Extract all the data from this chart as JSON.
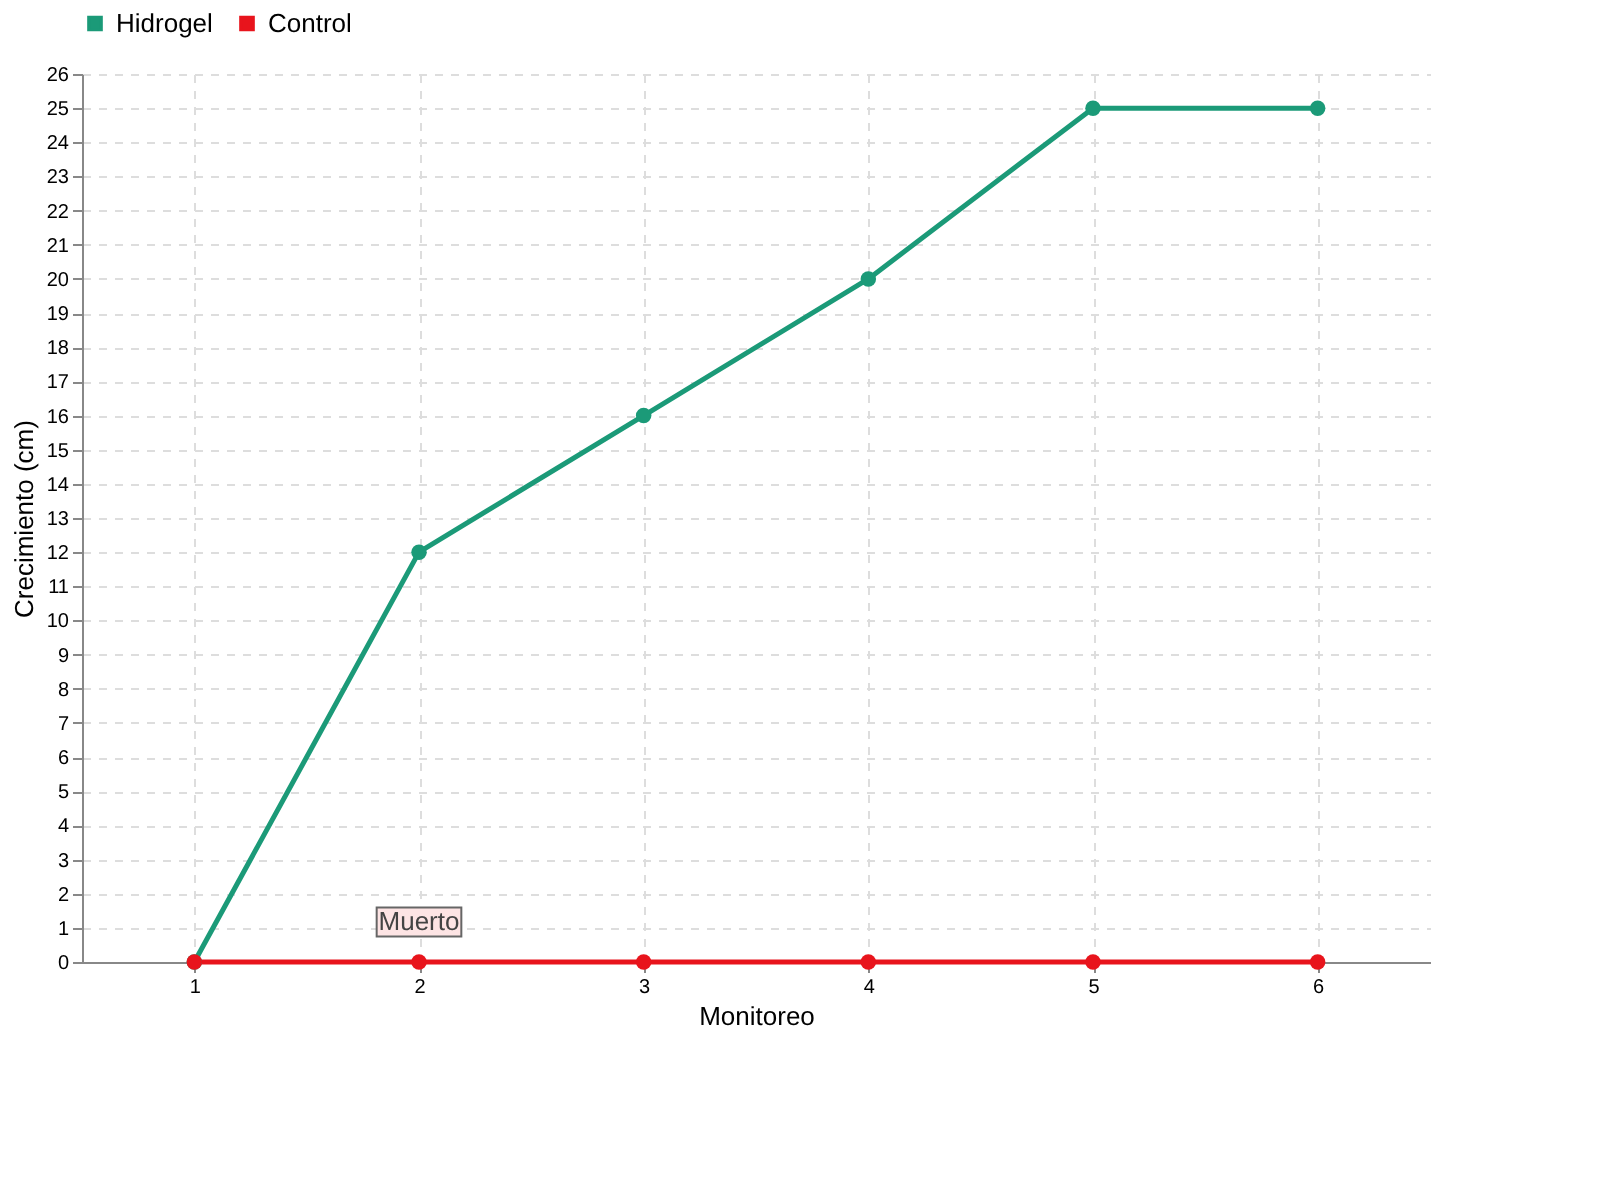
{
  "chart_data": {
    "type": "line",
    "xlabel": "Monitoreo",
    "ylabel": "Crecimiento (cm)",
    "x": [
      1,
      2,
      3,
      4,
      5,
      6
    ],
    "series": [
      {
        "name": "Hidrogel",
        "color": "#1b9a78",
        "values": [
          0,
          12,
          16,
          20,
          25,
          25
        ]
      },
      {
        "name": "Control",
        "color": "#e8141c",
        "values": [
          0,
          0,
          0,
          0,
          0,
          0
        ]
      }
    ],
    "xlim": [
      0.5,
      6.5
    ],
    "xticks": [
      1,
      2,
      3,
      4,
      5,
      6
    ],
    "ylim": [
      0,
      26
    ],
    "yticks": [
      0,
      1,
      2,
      3,
      4,
      5,
      6,
      7,
      8,
      9,
      10,
      11,
      12,
      13,
      14,
      15,
      16,
      17,
      18,
      19,
      20,
      21,
      22,
      23,
      24,
      25,
      26
    ],
    "grid": true,
    "legend": "top left",
    "marker": "circle",
    "line_style": "solid",
    "annotations": [
      {
        "text": "Muerto",
        "x": 2,
        "y": 0
      }
    ]
  }
}
